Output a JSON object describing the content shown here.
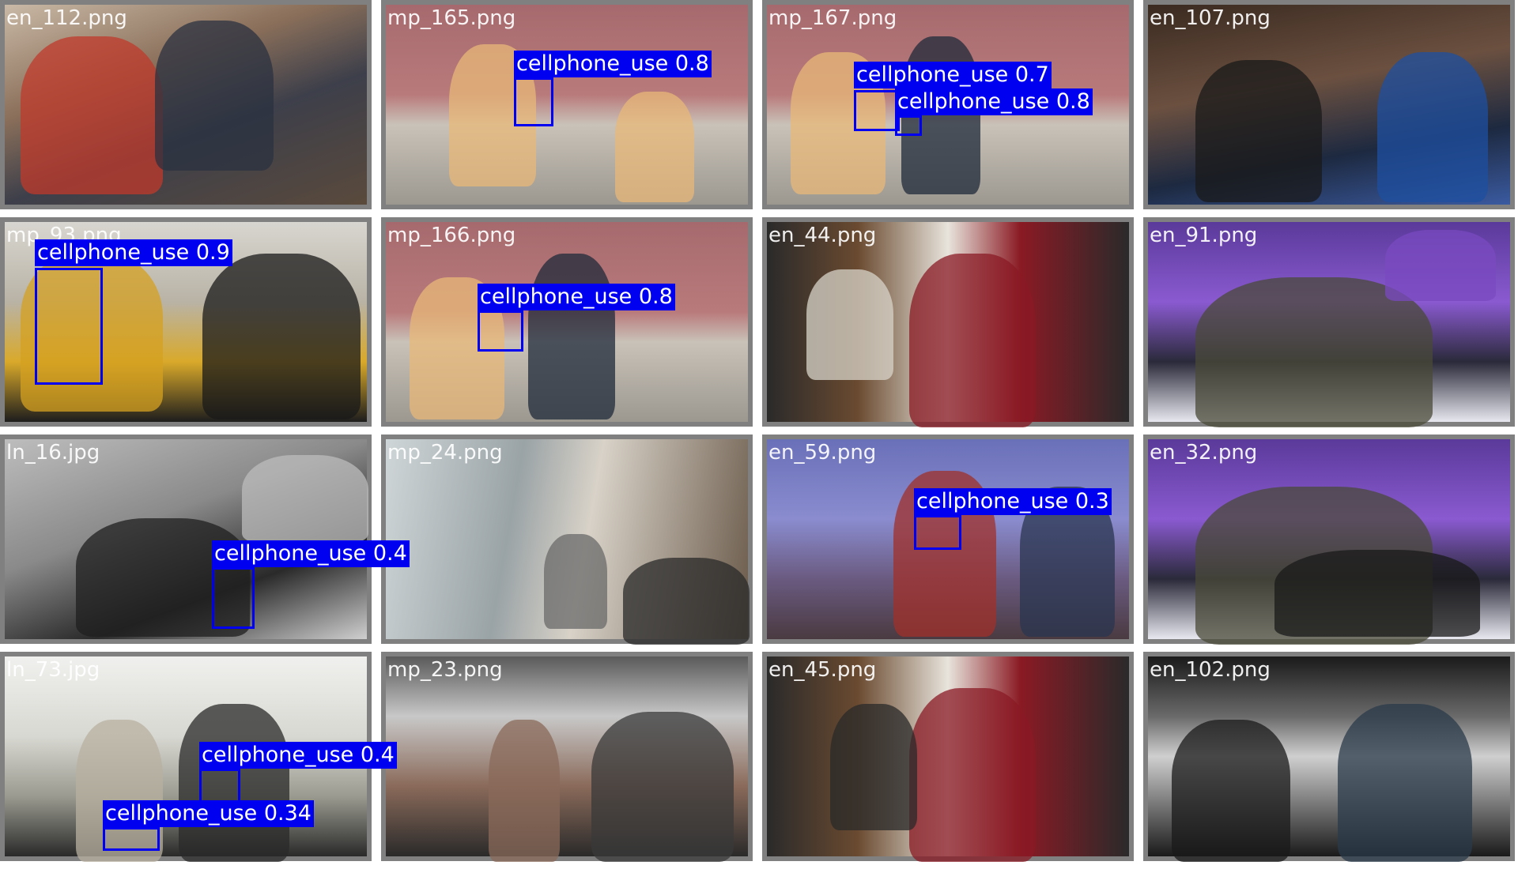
{
  "tiles": [
    {
      "filename": "en_112.png",
      "scene": "sc-office",
      "detections": []
    },
    {
      "filename": "mp_165.png",
      "scene": "sc-stair",
      "detections": [
        {
          "label": "cellphone_use 0.8"
        }
      ]
    },
    {
      "filename": "mp_167.png",
      "scene": "sc-stair",
      "detections": [
        {
          "label": "cellphone_use 0.7"
        },
        {
          "label": "cellphone_use 0.8"
        }
      ]
    },
    {
      "filename": "en_107.png",
      "scene": "sc-tattoo",
      "detections": []
    },
    {
      "filename": "mp_93.png",
      "scene": "sc-yellow",
      "detections": [
        {
          "label": "cellphone_use 0.9"
        }
      ]
    },
    {
      "filename": "mp_166.png",
      "scene": "sc-stair",
      "detections": [
        {
          "label": "cellphone_use 0.8"
        }
      ]
    },
    {
      "filename": "en_44.png",
      "scene": "sc-books",
      "detections": []
    },
    {
      "filename": "en_91.png",
      "scene": "sc-studio",
      "detections": []
    },
    {
      "filename": "ln_16.jpg",
      "scene": "sc-camera",
      "detections": [
        {
          "label": "cellphone_use 0.4"
        }
      ]
    },
    {
      "filename": "mp_24.png",
      "scene": "sc-metro",
      "detections": []
    },
    {
      "filename": "en_59.png",
      "scene": "sc-blue",
      "detections": [
        {
          "label": "cellphone_use 0.3"
        }
      ]
    },
    {
      "filename": "en_32.png",
      "scene": "sc-studio",
      "detections": []
    },
    {
      "filename": "ln_73.jpg",
      "scene": "sc-room",
      "detections": [
        {
          "label": "cellphone_use 0.4"
        },
        {
          "label": "cellphone_use 0.34"
        }
      ]
    },
    {
      "filename": "mp_23.png",
      "scene": "sc-train",
      "detections": []
    },
    {
      "filename": "en_45.png",
      "scene": "sc-books",
      "detections": []
    },
    {
      "filename": "en_102.png",
      "scene": "sc-car",
      "detections": []
    }
  ],
  "colors": {
    "tile_border": "#808080",
    "bbox": "#0000f0",
    "bbox_text": "#ffffff"
  }
}
